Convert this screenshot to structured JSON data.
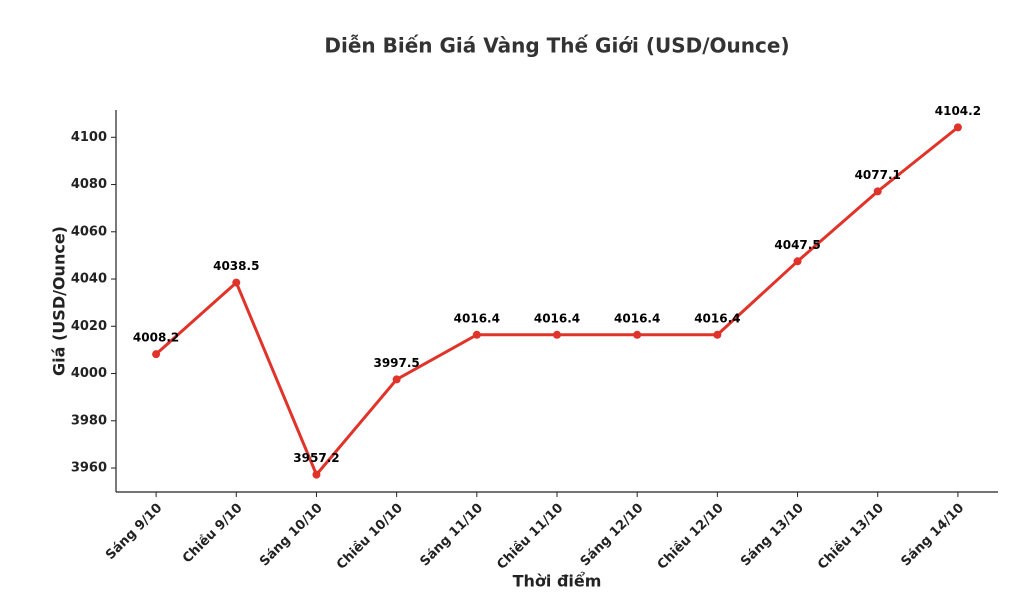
{
  "chart_data": {
    "type": "line",
    "title": "Diễn Biến Giá Vàng Thế Giới (USD/Ounce)",
    "x_label": "Thời điểm",
    "y_label": "Giá (USD/Ounce)",
    "categories": [
      "Sáng 9/10",
      "Chiều 9/10",
      "Sáng 10/10",
      "Chiều 10/10",
      "Sáng 11/10",
      "Chiều 11/10",
      "Sáng 12/10",
      "Chiều 12/10",
      "Sáng 13/10",
      "Chiều 13/10",
      "Sáng 14/10"
    ],
    "values": [
      4008.2,
      4038.5,
      3957.2,
      3997.5,
      4016.4,
      4016.4,
      4016.4,
      4016.4,
      4047.5,
      4077.1,
      4104.2
    ],
    "color": "#e0342a",
    "ylim": [
      3949.85,
      4111.55
    ],
    "yticks": [
      3960,
      3980,
      4000,
      4020,
      4040,
      4060,
      4080,
      4100
    ],
    "grid": false
  }
}
